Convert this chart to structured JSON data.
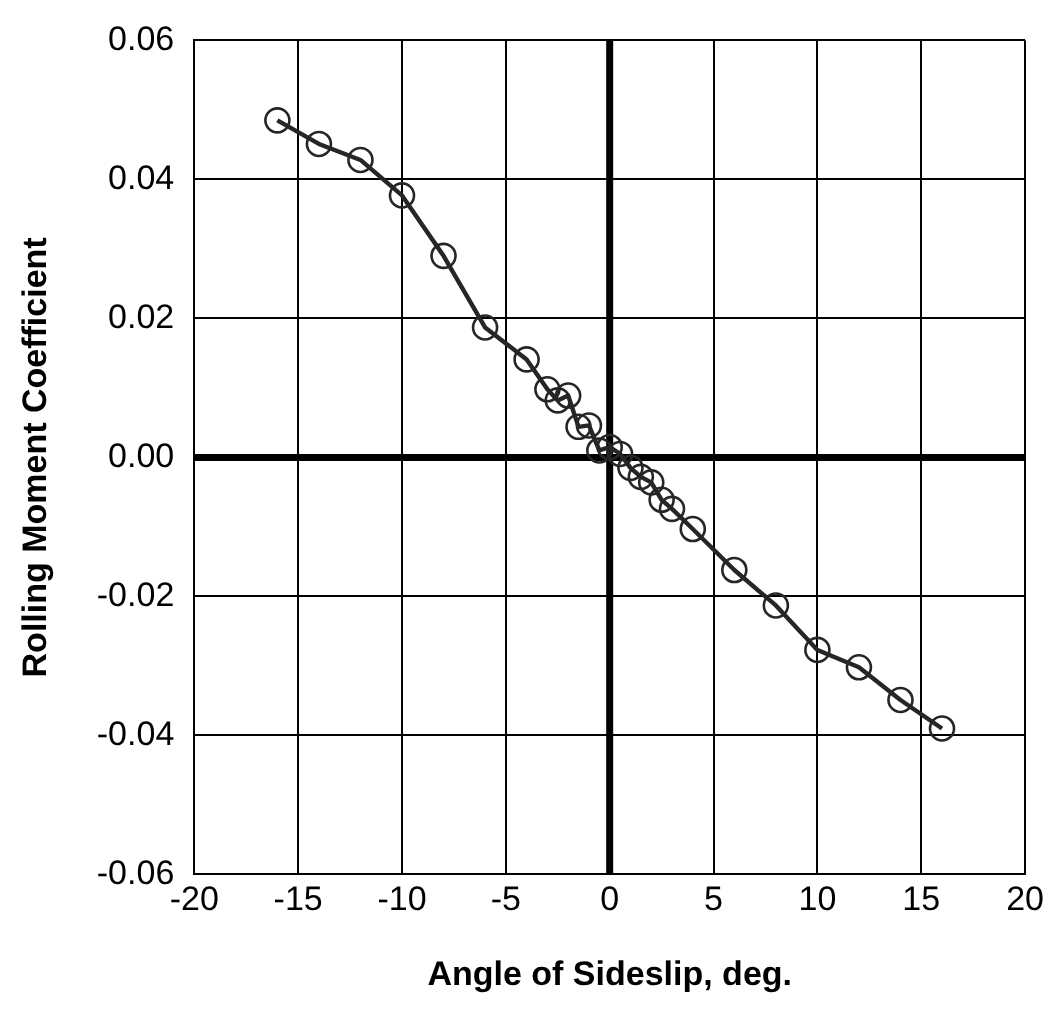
{
  "chart_data": {
    "type": "line",
    "xlabel": "Angle of Sideslip, deg.",
    "ylabel": "Rolling Moment Coefficient",
    "x": [
      -16,
      -14,
      -12,
      -10,
      -8,
      -6,
      -4,
      -3,
      -2.5,
      -2,
      -1.5,
      -1,
      -0.5,
      0,
      0.5,
      1,
      1.5,
      2,
      2.5,
      3,
      4,
      6,
      8,
      10,
      12,
      14,
      16
    ],
    "series": [
      {
        "color": "#262626",
        "values": [
          0.0485,
          0.0451,
          0.0428,
          0.0377,
          0.029,
          0.0187,
          0.0141,
          0.0098,
          0.0082,
          0.0089,
          0.0044,
          0.0046,
          0.001,
          0.0015,
          0.0005,
          -0.0015,
          -0.0028,
          -0.0036,
          -0.0061,
          -0.0074,
          -0.0103,
          -0.0162,
          -0.0213,
          -0.0277,
          -0.0302,
          -0.0349,
          -0.039
        ]
      }
    ],
    "xlim": [
      -20,
      20
    ],
    "xticks": [
      -20,
      -15,
      -10,
      -5,
      0,
      5,
      10,
      15,
      20
    ],
    "ylim": [
      -0.06,
      0.06
    ],
    "yticks": [
      {
        "value": -0.06,
        "label": "-0.06"
      },
      {
        "value": -0.04,
        "label": "-0.04"
      },
      {
        "value": -0.02,
        "label": "-0.02"
      },
      {
        "value": 0,
        "label": "0.00"
      },
      {
        "value": 0.02,
        "label": "0.02"
      },
      {
        "value": 0.04,
        "label": "0.04"
      },
      {
        "value": 0.06,
        "label": "0.06"
      }
    ],
    "grid": true,
    "legend": false,
    "marker": "circle",
    "line_style": "solid"
  }
}
